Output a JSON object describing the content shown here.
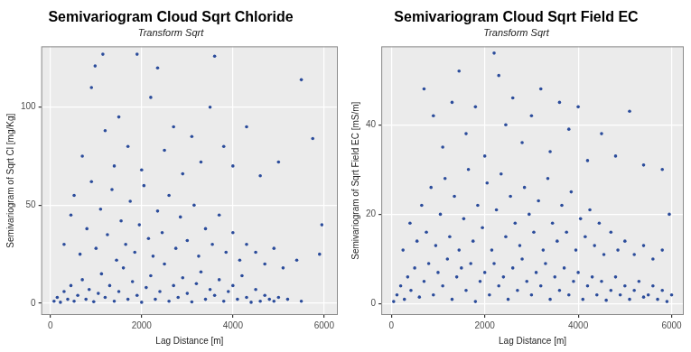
{
  "chart_data": [
    {
      "type": "scatter",
      "title": "Semivariogram Cloud Sqrt Chloride",
      "subtitle": "Transform Sqrt",
      "x_label": "Lag Distance [m]",
      "y_label": "Semivariogram of Sqrt Cl [mg/Kg]",
      "color": "#2b4c9b",
      "marker": "circle",
      "grid": true,
      "xlim": [
        -200,
        6300
      ],
      "ylim": [
        -6,
        131
      ],
      "xticks": [
        0,
        2000,
        4000,
        6000
      ],
      "yticks": [
        0,
        50,
        100
      ],
      "x": [
        80,
        150,
        220,
        300,
        380,
        450,
        520,
        600,
        700,
        780,
        850,
        950,
        1050,
        1120,
        1200,
        1300,
        1400,
        1500,
        1600,
        1700,
        1800,
        1900,
        2000,
        2100,
        2200,
        2300,
        2400,
        2500,
        2600,
        2700,
        2800,
        2900,
        3000,
        3100,
        3200,
        3300,
        3400,
        3500,
        3600,
        3700,
        3800,
        3900,
        4000,
        4100,
        4200,
        4300,
        4400,
        4500,
        4600,
        4700,
        4800,
        4900,
        5000,
        5200,
        5500,
        300,
        450,
        520,
        650,
        800,
        900,
        1000,
        1100,
        1250,
        1350,
        1450,
        1550,
        1650,
        1750,
        1850,
        1950,
        2050,
        2150,
        2250,
        2350,
        2450,
        2600,
        2750,
        2850,
        3000,
        3150,
        3250,
        3400,
        3550,
        3700,
        3850,
        4000,
        4150,
        4300,
        4500,
        4700,
        4900,
        5100,
        5400,
        5900,
        700,
        900,
        980,
        1150,
        1200,
        1400,
        1500,
        1700,
        1900,
        2000,
        2200,
        2350,
        2500,
        2700,
        2900,
        3100,
        3300,
        3500,
        3600,
        3800,
        4000,
        4300,
        4600,
        5000,
        5500,
        5750,
        5950
      ],
      "values": [
        1,
        3,
        0.5,
        6,
        2,
        9,
        1,
        4,
        12,
        2,
        7,
        0.8,
        5,
        15,
        3,
        9,
        1,
        6,
        18,
        2,
        11,
        4,
        0.5,
        8,
        14,
        2,
        6,
        20,
        1,
        9,
        3,
        13,
        5,
        0.7,
        10,
        16,
        2,
        7,
        4,
        12,
        1,
        6,
        9,
        2,
        14,
        3,
        0.5,
        7,
        1,
        4,
        2,
        1,
        3,
        2,
        1,
        30,
        45,
        55,
        25,
        38,
        62,
        28,
        48,
        35,
        58,
        22,
        42,
        30,
        52,
        26,
        40,
        60,
        33,
        24,
        47,
        36,
        55,
        28,
        44,
        32,
        50,
        24,
        38,
        30,
        45,
        26,
        36,
        22,
        30,
        26,
        20,
        28,
        18,
        22,
        25,
        75,
        110,
        121,
        127,
        88,
        70,
        95,
        80,
        127,
        68,
        105,
        120,
        78,
        90,
        66,
        85,
        72,
        100,
        126,
        80,
        70,
        90,
        65,
        72,
        114,
        84,
        40
      ]
    },
    {
      "type": "scatter",
      "title": "Semivariogram Cloud Sqrt Field EC",
      "subtitle": "Transform Sqrt",
      "x_label": "Lag Distance [m]",
      "y_label": "Semivariogram of Sqrt Field EC [mS/m]",
      "color": "#2b4c9b",
      "marker": "circle",
      "grid": true,
      "xlim": [
        -215,
        6260
      ],
      "ylim": [
        -2.5,
        57.5
      ],
      "xticks": [
        0,
        2000,
        4000,
        6000
      ],
      "yticks": [
        0,
        20,
        40
      ],
      "x": [
        50,
        120,
        200,
        280,
        350,
        420,
        500,
        600,
        700,
        800,
        900,
        1000,
        1100,
        1200,
        1300,
        1400,
        1500,
        1600,
        1700,
        1800,
        1900,
        2000,
        2100,
        2200,
        2300,
        2400,
        2500,
        2600,
        2700,
        2800,
        2900,
        3000,
        3100,
        3200,
        3300,
        3400,
        3500,
        3600,
        3700,
        3800,
        3900,
        4000,
        4100,
        4200,
        4300,
        4400,
        4500,
        4600,
        4700,
        4800,
        4900,
        5000,
        5100,
        5200,
        5300,
        5400,
        5500,
        5600,
        5700,
        5800,
        5900,
        6000,
        250,
        400,
        550,
        650,
        750,
        850,
        950,
        1050,
        1150,
        1250,
        1350,
        1450,
        1550,
        1650,
        1750,
        1850,
        1950,
        2050,
        2150,
        2250,
        2350,
        2450,
        2550,
        2650,
        2750,
        2850,
        2950,
        3050,
        3150,
        3250,
        3350,
        3450,
        3550,
        3650,
        3750,
        3850,
        3950,
        4050,
        4150,
        4250,
        4350,
        4450,
        4550,
        4700,
        4850,
        5000,
        5200,
        5400,
        5600,
        5800,
        5950,
        700,
        900,
        1100,
        1300,
        1450,
        1600,
        1800,
        2000,
        2200,
        2300,
        2450,
        2600,
        2800,
        3000,
        3200,
        3400,
        3600,
        3800,
        4000,
        4200,
        4500,
        4800,
        5100,
        5400,
        5800
      ],
      "values": [
        0.5,
        2,
        4,
        1,
        6,
        3,
        8,
        1.5,
        5,
        9,
        2,
        7,
        4,
        10,
        1,
        6,
        8,
        3,
        9,
        0.5,
        5,
        7,
        2,
        9,
        4,
        6,
        1,
        8,
        3,
        10,
        5,
        2,
        7,
        4,
        9,
        1,
        6,
        3,
        8,
        2,
        5,
        7,
        1,
        4,
        6,
        2,
        5,
        0.8,
        3,
        6,
        2,
        4,
        1,
        3,
        5,
        1.5,
        2,
        4,
        1,
        3,
        0.5,
        2,
        12,
        18,
        14,
        22,
        16,
        26,
        13,
        20,
        28,
        15,
        24,
        12,
        19,
        30,
        14,
        22,
        17,
        27,
        12,
        21,
        29,
        15,
        24,
        18,
        13,
        26,
        20,
        16,
        23,
        12,
        28,
        18,
        14,
        22,
        16,
        25,
        12,
        19,
        15,
        21,
        13,
        18,
        11,
        16,
        12,
        14,
        11,
        13,
        10,
        12,
        20,
        48,
        42,
        35,
        45,
        52,
        38,
        44,
        33,
        56,
        51,
        40,
        46,
        36,
        42,
        48,
        34,
        45,
        39,
        44,
        32,
        38,
        33,
        43,
        31,
        30
      ]
    }
  ]
}
